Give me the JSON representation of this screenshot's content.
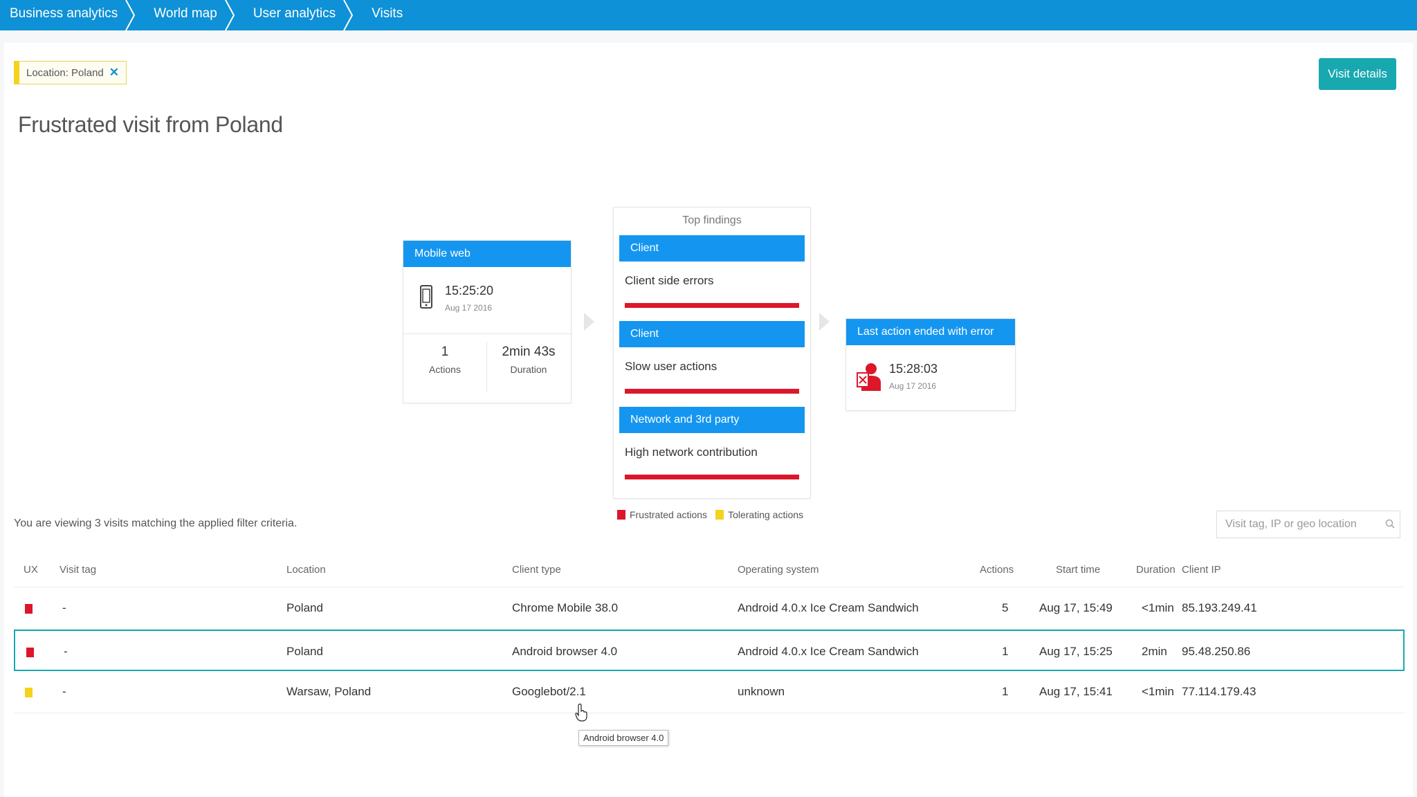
{
  "breadcrumbs": [
    "Business analytics",
    "World map",
    "User analytics",
    "Visits"
  ],
  "filter": {
    "label": "Location: Poland",
    "remove": "✕"
  },
  "visit_details_label": "Visit details",
  "page_title": "Frustrated visit from Poland",
  "colors": {
    "brand": "#0e91d6",
    "accent": "#18a8b0",
    "frustrated": "#dc172a",
    "tolerating": "#f5d21b",
    "card_header": "#1496f0"
  },
  "start_card": {
    "header": "Mobile web",
    "icon": "mobile-phone-icon",
    "time": "15:25:20",
    "date": "Aug 17 2016",
    "actions_value": "1",
    "actions_label": "Actions",
    "duration_value": "2min 43s",
    "duration_label": "Duration"
  },
  "findings": {
    "title": "Top findings",
    "items": [
      {
        "category": "Client",
        "text": "Client side errors"
      },
      {
        "category": "Client",
        "text": "Slow user actions"
      },
      {
        "category": "Network and 3rd party",
        "text": "High network contribution"
      }
    ]
  },
  "legend": {
    "frustrated": "Frustrated actions",
    "tolerating": "Tolerating actions"
  },
  "end_card": {
    "header": "Last action ended with error",
    "icon": "user-error-icon",
    "time": "15:28:03",
    "date": "Aug 17 2016"
  },
  "summary": "You are viewing 3 visits matching the applied filter criteria.",
  "search": {
    "placeholder": "Visit tag, IP or geo location"
  },
  "table": {
    "columns": [
      "UX",
      "Visit tag",
      "Location",
      "Client type",
      "Operating system",
      "Actions",
      "Start time",
      "Duration",
      "Client IP"
    ],
    "rows": [
      {
        "ux": "frustrated",
        "tag": "-",
        "location": "Poland",
        "client": "Chrome Mobile 38.0",
        "os": "Android 4.0.x Ice Cream Sandwich",
        "actions": "5",
        "start": "Aug 17, 15:49",
        "duration": "<1min",
        "ip": "85.193.249.41"
      },
      {
        "ux": "frustrated",
        "tag": "-",
        "location": "Poland",
        "client": "Android browser 4.0",
        "os": "Android 4.0.x Ice Cream Sandwich",
        "actions": "1",
        "start": "Aug 17, 15:25",
        "duration": "2min",
        "ip": "95.48.250.86"
      },
      {
        "ux": "tolerating",
        "tag": "-",
        "location": "Warsaw, Poland",
        "client": "Googlebot/2.1",
        "os": "unknown",
        "actions": "1",
        "start": "Aug 17, 15:41",
        "duration": "<1min",
        "ip": "77.114.179.43"
      }
    ]
  },
  "tooltip": "Android browser 4.0"
}
